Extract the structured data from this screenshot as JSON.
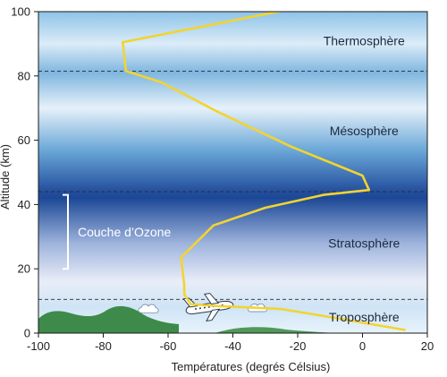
{
  "chart_data": {
    "type": "line",
    "xlabel": "Températures (degrés Célsius)",
    "ylabel": "Altitude (km)",
    "xlim": [
      -100,
      20
    ],
    "ylim": [
      0,
      100
    ],
    "x_ticks": [
      -100,
      -80,
      -60,
      -40,
      -20,
      0,
      20
    ],
    "y_ticks": [
      0,
      20,
      40,
      60,
      80,
      100
    ],
    "grid": false,
    "series": [
      {
        "color": "#f2d431",
        "points": [
          [
            13,
            1
          ],
          [
            -10,
            5
          ],
          [
            -25,
            7.5
          ],
          [
            -46,
            8.5
          ],
          [
            -53,
            9
          ],
          [
            -55,
            12
          ],
          [
            -55,
            15
          ],
          [
            -56,
            23.5
          ],
          [
            -46,
            33.5
          ],
          [
            -30,
            39
          ],
          [
            -12,
            43
          ],
          [
            2,
            44.5
          ],
          [
            0,
            49
          ],
          [
            -22,
            58
          ],
          [
            -45,
            69
          ],
          [
            -62,
            78
          ],
          [
            -73,
            81.5
          ],
          [
            -74,
            90.5
          ],
          [
            -21,
            101
          ]
        ]
      }
    ],
    "layer_boundaries_km": [
      10.5,
      44,
      81.5
    ],
    "layers": [
      {
        "label": "Thermosphère",
        "altitude": 91,
        "temperature": -2
      },
      {
        "label": "Mésosphère",
        "altitude": 63,
        "temperature": -2
      },
      {
        "label": "Stratosphère",
        "altitude": 28,
        "temperature": -2
      },
      {
        "label": "Troposphère",
        "altitude": 5,
        "temperature": -2
      }
    ],
    "ozone_layer": {
      "label": "Couche d’Ozone",
      "range": [
        20,
        43
      ]
    },
    "colors": {
      "line": "#f2d431",
      "sky_light": "#e8f2fb",
      "sky_blue": "#76b0dc",
      "sky_dark": "#1e4b98",
      "ground": "#3e8a4a"
    },
    "icons": [
      "airplane-icon",
      "cloud-icon",
      "hills"
    ]
  }
}
